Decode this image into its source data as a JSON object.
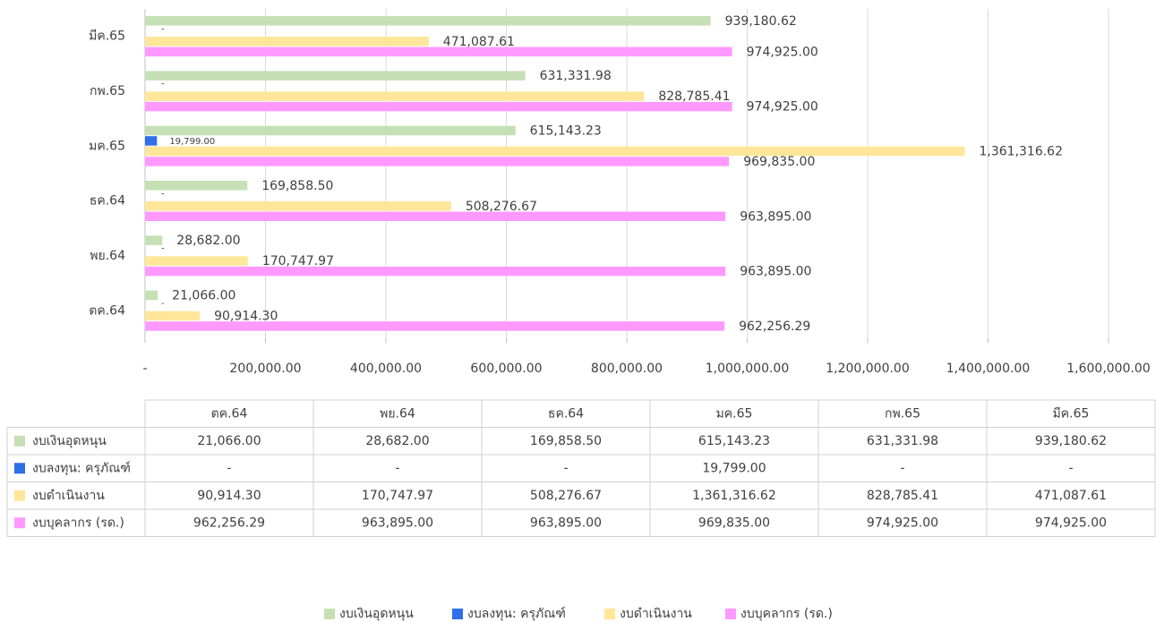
{
  "chart_data": {
    "type": "bar",
    "orientation": "horizontal",
    "categories": [
      "ตค.64",
      "พย.64",
      "ธค.64",
      "มค.65",
      "กพ.65",
      "มีค.65"
    ],
    "series": [
      {
        "name": "งบเงินอุดหนุน",
        "color": "#c5e0b4",
        "values": [
          21066,
          28682,
          169858.5,
          615143.23,
          631331.98,
          939180.62
        ],
        "value_labels": [
          "21,066.00",
          "28,682.00",
          "169,858.50",
          "615,143.23",
          "631,331.98",
          "939,180.62"
        ]
      },
      {
        "name": "งบลงทุน: ครุภัณฑ์",
        "color": "#2f6fe8",
        "values": [
          0,
          0,
          0,
          19799,
          0,
          0
        ],
        "value_labels": [
          "-",
          "-",
          "-",
          "19,799.00",
          "-",
          "-"
        ]
      },
      {
        "name": "งบดำเนินงาน",
        "color": "#ffe699",
        "values": [
          90914.3,
          170747.97,
          508276.67,
          1361316.62,
          828785.41,
          471087.61
        ],
        "value_labels": [
          "90,914.30",
          "170,747.97",
          "508,276.67",
          "1,361,316.62",
          "828,785.41",
          "471,087.61"
        ]
      },
      {
        "name": "งบบุคลากร (รด.)",
        "color": "#ff99ff",
        "values": [
          962256.29,
          963895,
          963895,
          969835,
          974925,
          974925
        ],
        "value_labels": [
          "962,256.29",
          "963,895.00",
          "963,895.00",
          "969,835.00",
          "974,925.00",
          "974,925.00"
        ]
      }
    ],
    "xlim": [
      0,
      1600000
    ],
    "xticks": [
      {
        "value": 0,
        "label": "-"
      },
      {
        "value": 200000,
        "label": "200,000.00"
      },
      {
        "value": 400000,
        "label": "400,000.00"
      },
      {
        "value": 600000,
        "label": "600,000.00"
      },
      {
        "value": 800000,
        "label": "800,000.00"
      },
      {
        "value": 1000000,
        "label": "1,000,000.00"
      },
      {
        "value": 1200000,
        "label": "1,200,000.00"
      },
      {
        "value": 1400000,
        "label": "1,400,000.00"
      },
      {
        "value": 1600000,
        "label": "1,600,000.00"
      }
    ],
    "grid": true,
    "legend": "bottom",
    "data_table": true
  }
}
